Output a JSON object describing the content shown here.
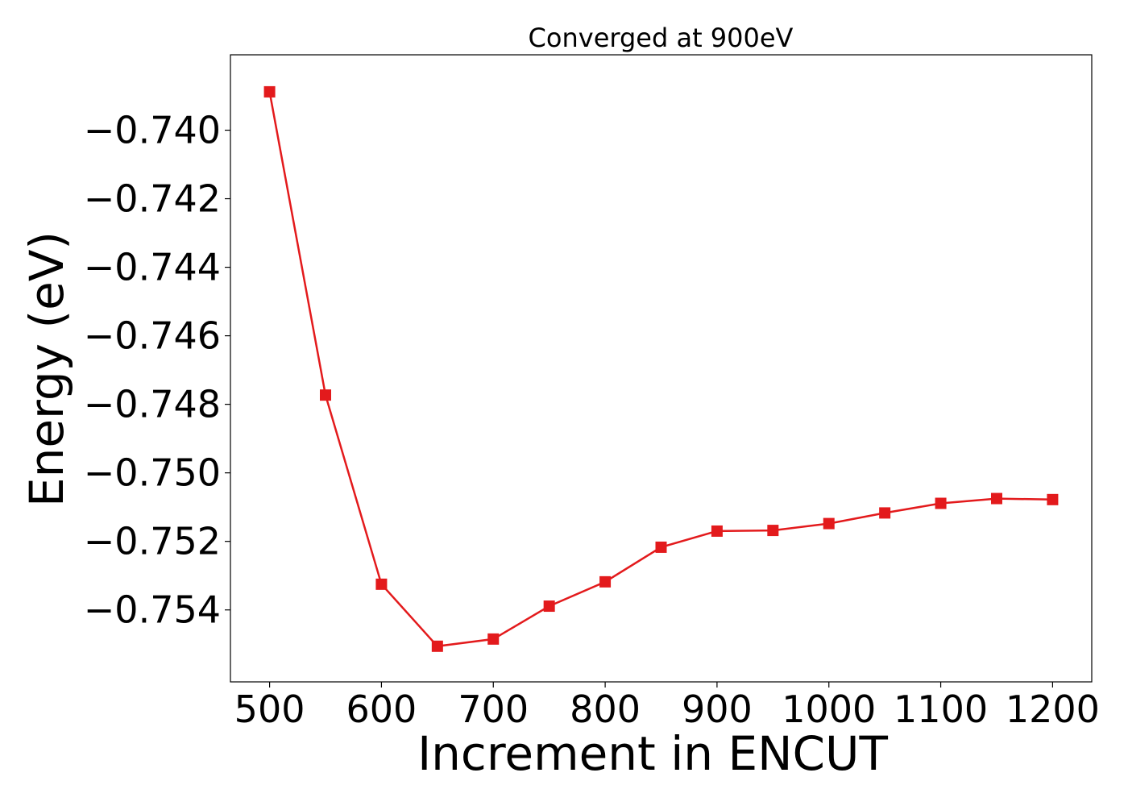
{
  "chart_data": {
    "type": "line",
    "title": "Converged at 900eV",
    "xlabel": "Increment in ENCUT",
    "ylabel": "Energy (eV)",
    "xlim": [
      465,
      1235
    ],
    "ylim": [
      -0.7561,
      -0.7378
    ],
    "x_ticks": [
      500,
      600,
      700,
      800,
      900,
      1000,
      1100,
      1200
    ],
    "x_tick_labels": [
      "500",
      "600",
      "700",
      "800",
      "900",
      "1000",
      "1100",
      "1200"
    ],
    "y_ticks": [
      -0.74,
      -0.742,
      -0.744,
      -0.746,
      -0.748,
      -0.75,
      -0.752,
      -0.754
    ],
    "y_tick_labels": [
      "−0.740",
      "−0.742",
      "−0.744",
      "−0.746",
      "−0.748",
      "−0.750",
      "−0.752",
      "−0.754"
    ],
    "grid": false,
    "series": [
      {
        "color": "#e31a1c",
        "marker": "square",
        "x": [
          500,
          550,
          600,
          650,
          700,
          750,
          800,
          850,
          900,
          950,
          1000,
          1050,
          1100,
          1150,
          1200
        ],
        "y": [
          -0.73888,
          -0.74773,
          -0.75325,
          -0.75506,
          -0.75485,
          -0.75389,
          -0.75318,
          -0.75217,
          -0.7517,
          -0.75168,
          -0.75148,
          -0.75117,
          -0.75089,
          -0.75075,
          -0.75078
        ]
      }
    ]
  }
}
